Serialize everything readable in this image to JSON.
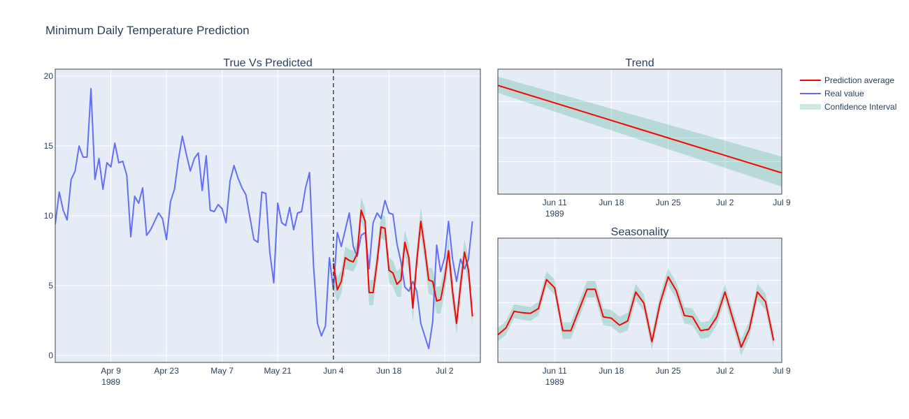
{
  "title": "Minimum Daily Temperature Prediction",
  "colors": {
    "prediction": "#ff0000",
    "real": "#636efa",
    "confidence": "rgba(0,150,100,0.2)",
    "plot_bg": "#e5ecf6",
    "divider": "#444444"
  },
  "legend": {
    "items": [
      {
        "label": "Prediction average",
        "color": "#ff0000",
        "kind": "line"
      },
      {
        "label": "Real value",
        "color": "#636efa",
        "kind": "line"
      },
      {
        "label": "Confidence Interval",
        "color": "rgba(0,150,100,0.2)",
        "kind": "band"
      }
    ]
  },
  "chart_data": [
    {
      "id": "true_vs_predicted",
      "type": "line",
      "title": "True Vs Predicted",
      "x_start": "1989-03-26",
      "forecast_start": "1989-06-04",
      "xlim": [
        "1989-03-26",
        "1989-07-11"
      ],
      "ylim": [
        -0.5,
        20.5
      ],
      "y_ticks": [
        0,
        5,
        10,
        15,
        20
      ],
      "x_ticks": [
        {
          "date": "1989-04-09",
          "label": "Apr 9",
          "sub": "1989"
        },
        {
          "date": "1989-04-23",
          "label": "Apr 23",
          "sub": ""
        },
        {
          "date": "1989-05-07",
          "label": "May 7",
          "sub": ""
        },
        {
          "date": "1989-05-21",
          "label": "May 21",
          "sub": ""
        },
        {
          "date": "1989-06-04",
          "label": "Jun 4",
          "sub": ""
        },
        {
          "date": "1989-06-18",
          "label": "Jun 18",
          "sub": ""
        },
        {
          "date": "1989-07-02",
          "label": "Jul 2",
          "sub": ""
        }
      ],
      "series": [
        {
          "name": "Real value",
          "key": "real",
          "start": "1989-03-26",
          "values": [
            9.4,
            11.7,
            10.4,
            9.7,
            12.6,
            13.2,
            15.0,
            14.2,
            14.2,
            19.1,
            12.6,
            14.1,
            11.9,
            13.8,
            13.5,
            15.2,
            13.8,
            13.9,
            12.9,
            8.5,
            11.4,
            10.9,
            12.0,
            8.6,
            9.0,
            9.6,
            10.2,
            9.8,
            8.3,
            11.0,
            11.9,
            14.0,
            15.7,
            14.4,
            13.2,
            14.1,
            14.5,
            11.8,
            14.3,
            10.4,
            10.3,
            10.8,
            10.5,
            9.5,
            12.5,
            13.6,
            12.7,
            12.0,
            11.5,
            9.9,
            8.3,
            8.1,
            11.7,
            11.6,
            7.4,
            5.2,
            10.9,
            9.5,
            9.3,
            10.6,
            9.0,
            10.2,
            10.3,
            12.0,
            13.1,
            6.5,
            2.3,
            1.4,
            2.1,
            7.0,
            4.7,
            8.8,
            7.8,
            9.0,
            10.2,
            7.8,
            7.1,
            8.6,
            8.8,
            6.2,
            9.5,
            10.2,
            9.8,
            11.1,
            10.2,
            10.1,
            8.0,
            6.7,
            4.9,
            4.6,
            5.3,
            4.6,
            2.3,
            1.4,
            0.5,
            2.4,
            7.9,
            6.0,
            7.0,
            9.6,
            6.9,
            5.3,
            6.9,
            6.2,
            6.9,
            9.6
          ]
        },
        {
          "name": "Prediction average",
          "key": "prediction",
          "start": "1989-06-04",
          "values": [
            6.6,
            4.7,
            5.3,
            7.0,
            6.8,
            6.7,
            7.3,
            10.4,
            9.6,
            4.5,
            4.5,
            6.7,
            9.2,
            9.1,
            6.1,
            5.9,
            5.1,
            5.4,
            8.1,
            7.0,
            3.4,
            6.8,
            9.6,
            7.7,
            5.4,
            5.3,
            3.9,
            4.0,
            5.5,
            7.5,
            4.6,
            2.3,
            5.0,
            7.4,
            6.1,
            2.8
          ],
          "lower": [
            4.8,
            3.8,
            4.4,
            6.2,
            6.1,
            6.0,
            6.6,
            9.6,
            8.8,
            3.6,
            3.6,
            5.8,
            8.4,
            8.2,
            5.2,
            4.9,
            4.2,
            4.2,
            7.2,
            6.1,
            2.4,
            5.8,
            8.6,
            6.7,
            4.4,
            4.3,
            3.0,
            3.0,
            4.5,
            6.5,
            3.6,
            1.5,
            4.0,
            6.5,
            5.2,
            2.0
          ],
          "upper": [
            7.2,
            5.6,
            6.1,
            7.8,
            7.6,
            7.5,
            8.1,
            11.3,
            10.5,
            5.4,
            5.4,
            7.6,
            10.1,
            10.0,
            7.0,
            6.8,
            6.0,
            6.3,
            9.0,
            7.9,
            4.3,
            7.7,
            10.6,
            8.7,
            6.3,
            6.2,
            4.9,
            5.0,
            6.4,
            8.4,
            5.6,
            3.0,
            6.0,
            8.3,
            7.0,
            3.6
          ]
        }
      ]
    },
    {
      "id": "trend",
      "type": "line",
      "title": "Trend",
      "xlim": [
        "1989-06-04",
        "1989-07-09"
      ],
      "ylim": [
        0,
        100
      ],
      "x_ticks": [
        {
          "date": "1989-06-11",
          "label": "Jun 11",
          "sub": "1989"
        },
        {
          "date": "1989-06-18",
          "label": "Jun 18",
          "sub": ""
        },
        {
          "date": "1989-06-25",
          "label": "Jun 25",
          "sub": ""
        },
        {
          "date": "1989-07-02",
          "label": "Jul 2",
          "sub": ""
        },
        {
          "date": "1989-07-09",
          "label": "Jul 9",
          "sub": ""
        }
      ],
      "series": [
        {
          "name": "Prediction average",
          "key": "prediction",
          "x": [
            "1989-06-04",
            "1989-07-09"
          ],
          "values": [
            87,
            17
          ],
          "lower": [
            81,
            6
          ],
          "upper": [
            94,
            30
          ]
        }
      ]
    },
    {
      "id": "seasonality",
      "type": "line",
      "title": "Seasonality",
      "xlim": [
        "1989-06-04",
        "1989-07-09"
      ],
      "ylim": [
        -3.5,
        5.5
      ],
      "x_ticks": [
        {
          "date": "1989-06-11",
          "label": "Jun 11",
          "sub": "1989"
        },
        {
          "date": "1989-06-18",
          "label": "Jun 18",
          "sub": ""
        },
        {
          "date": "1989-06-25",
          "label": "Jun 25",
          "sub": ""
        },
        {
          "date": "1989-07-02",
          "label": "Jul 2",
          "sub": ""
        },
        {
          "date": "1989-07-09",
          "label": "Jul 9",
          "sub": ""
        }
      ],
      "series": [
        {
          "name": "Prediction average",
          "key": "prediction",
          "start": "1989-06-04",
          "values": [
            -1.5,
            -1.0,
            0.2,
            0.1,
            0.05,
            0.4,
            2.5,
            1.9,
            -1.2,
            -1.2,
            0.3,
            1.8,
            1.8,
            -0.2,
            -0.3,
            -0.8,
            -0.5,
            1.6,
            0.8,
            -2.0,
            0.8,
            2.7,
            1.7,
            -0.1,
            -0.2,
            -1.2,
            -1.1,
            -0.2,
            1.6,
            -0.4,
            -2.4,
            -1.1,
            1.6,
            0.9,
            -1.9
          ],
          "lower": [
            -2.0,
            -1.5,
            -0.3,
            -0.4,
            -0.5,
            -0.1,
            2.0,
            1.4,
            -1.8,
            -1.8,
            -0.3,
            1.2,
            1.2,
            -0.8,
            -0.9,
            -1.4,
            -1.2,
            1.0,
            0.2,
            -2.6,
            0.2,
            2.1,
            1.1,
            -0.7,
            -0.8,
            -1.8,
            -1.7,
            -0.8,
            1.0,
            -1.0,
            -3.0,
            -1.7,
            1.0,
            0.3,
            -2.5
          ],
          "upper": [
            -1.0,
            -0.5,
            0.7,
            0.6,
            0.5,
            0.9,
            3.1,
            2.5,
            -0.6,
            -0.6,
            0.9,
            2.4,
            2.4,
            0.4,
            0.3,
            -0.2,
            0.1,
            2.2,
            1.4,
            -1.4,
            1.4,
            3.3,
            2.3,
            0.5,
            0.4,
            -0.6,
            -0.5,
            0.4,
            2.2,
            0.2,
            -1.8,
            -0.5,
            2.2,
            1.5,
            -1.3
          ]
        }
      ]
    }
  ]
}
